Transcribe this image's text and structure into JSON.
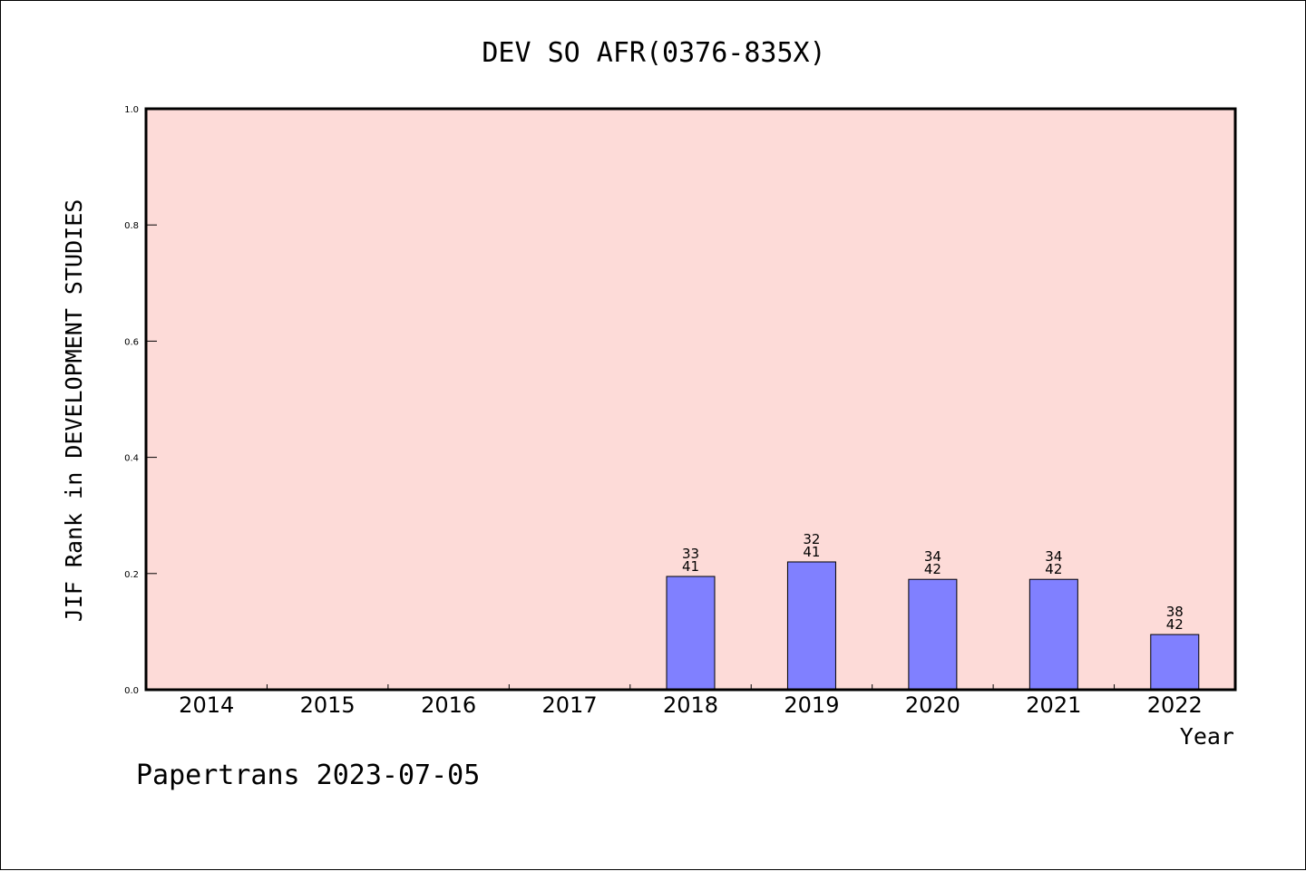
{
  "chart_data": {
    "type": "bar",
    "title": "DEV SO AFR(0376-835X)",
    "xlabel": "Year",
    "ylabel": "JIF Rank in DEVELOPMENT STUDIES",
    "categories": [
      "2014",
      "2015",
      "2016",
      "2017",
      "2018",
      "2019",
      "2020",
      "2021",
      "2022"
    ],
    "values": [
      null,
      null,
      null,
      null,
      0.195,
      0.22,
      0.19,
      0.19,
      0.095
    ],
    "rank_labels": [
      null,
      null,
      null,
      null,
      [
        "33",
        "41"
      ],
      [
        "32",
        "41"
      ],
      [
        "34",
        "42"
      ],
      [
        "34",
        "42"
      ],
      [
        "38",
        "42"
      ]
    ],
    "ylim": [
      0,
      1.0
    ],
    "yticks": [
      "0.0",
      "0.2",
      "0.4",
      "0.6",
      "0.8",
      "1.0"
    ],
    "grid": false,
    "colors": {
      "plot_background": "#fddbd8",
      "bar_fill": "#8080ff",
      "bar_stroke": "#000000"
    }
  },
  "footer": {
    "text": "Papertrans 2023-07-05"
  }
}
